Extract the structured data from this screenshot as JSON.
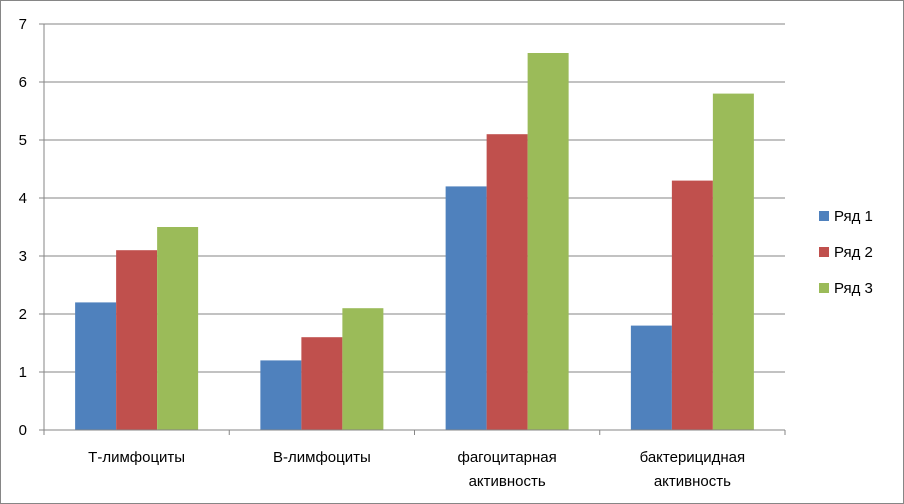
{
  "chart_data": {
    "type": "bar",
    "categories": [
      [
        "Т-лимфоциты"
      ],
      [
        "В-лимфоциты"
      ],
      [
        "фагоцитарная",
        "активность"
      ],
      [
        "бактерицидная",
        "активность"
      ]
    ],
    "series": [
      {
        "name": "Ряд 1",
        "color": "#4F81BD",
        "values": [
          2.2,
          1.2,
          4.2,
          1.8
        ]
      },
      {
        "name": "Ряд 2",
        "color": "#C0504D",
        "values": [
          3.1,
          1.6,
          5.1,
          4.3
        ]
      },
      {
        "name": "Ряд 3",
        "color": "#9BBB59",
        "values": [
          3.5,
          2.1,
          6.5,
          5.8
        ]
      }
    ],
    "ylim": [
      0,
      7
    ],
    "yticks": [
      0,
      1,
      2,
      3,
      4,
      5,
      6,
      7
    ],
    "grid": true,
    "legend": "right"
  }
}
